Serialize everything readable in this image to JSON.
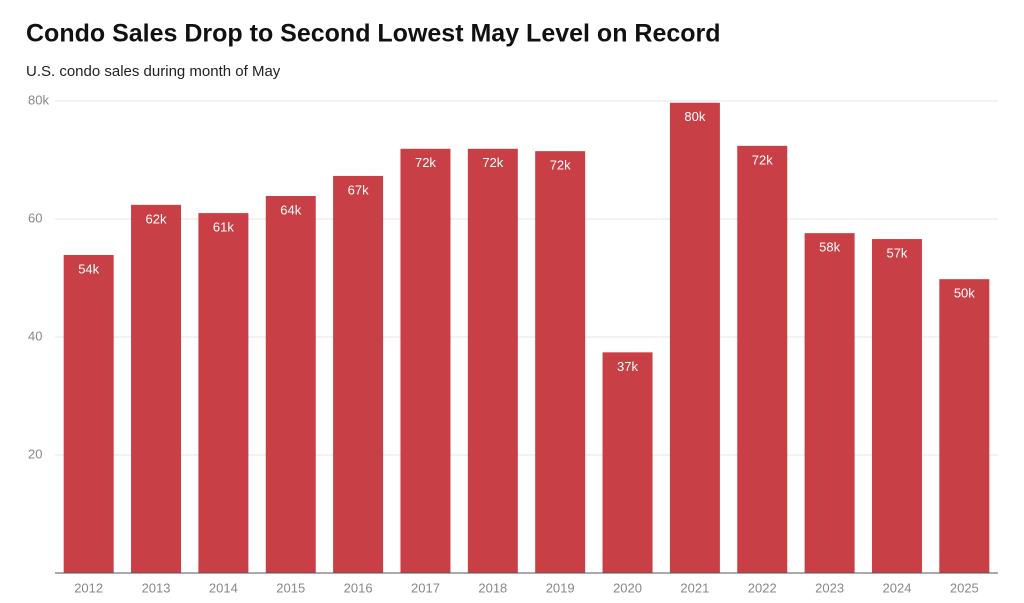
{
  "chart_data": {
    "type": "bar",
    "title": "Condo Sales Drop to Second Lowest May Level on Record",
    "subtitle": "U.S. condo sales during month of May",
    "categories": [
      "2012",
      "2013",
      "2014",
      "2015",
      "2016",
      "2017",
      "2018",
      "2019",
      "2020",
      "2021",
      "2022",
      "2023",
      "2024",
      "2025"
    ],
    "values": [
      53.9,
      62.4,
      61.0,
      63.9,
      67.3,
      71.9,
      71.9,
      71.5,
      37.4,
      79.7,
      72.4,
      57.6,
      56.6,
      49.8
    ],
    "value_labels": [
      "54k",
      "62k",
      "61k",
      "64k",
      "67k",
      "72k",
      "72k",
      "72k",
      "37k",
      "80k",
      "72k",
      "58k",
      "57k",
      "50k"
    ],
    "color": "#c83f45",
    "ylim": [
      0,
      80
    ],
    "yticks": [
      20,
      40,
      60,
      {
        "value": 80,
        "label": "80k"
      }
    ],
    "grid": true
  }
}
